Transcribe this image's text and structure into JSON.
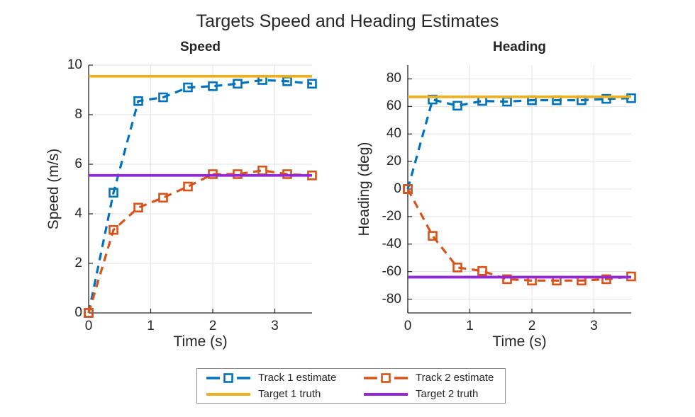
{
  "figure": {
    "title": "Targets Speed and Heading Estimates"
  },
  "style": {
    "background": "#FFFFFF",
    "axis_color": "#262626",
    "grid_color": "#E3E3E3",
    "text_color": "#262626",
    "legend_border_color": "#8C8C8C",
    "track1_color": "#0072BD",
    "track2_color": "#D95319",
    "target1_color": "#EDB120",
    "target2_color": "#9228D8"
  },
  "chart_data": [
    {
      "type": "line",
      "title": "Speed",
      "xlabel": "Time (s)",
      "ylabel": "Speed (m/s)",
      "xlim": [
        0,
        3.6
      ],
      "ylim": [
        0,
        10
      ],
      "xticks": [
        0,
        1,
        2,
        3
      ],
      "yticks": [
        0,
        2,
        4,
        6,
        8,
        10
      ],
      "grid": true,
      "legend_position": "south-outside",
      "x": [
        0,
        0.4,
        0.8,
        1.2,
        1.6,
        2.0,
        2.4,
        2.8,
        3.2,
        3.6
      ],
      "series": [
        {
          "name": "Track 1 estimate",
          "color": "#0072BD",
          "line_style": "dashed",
          "marker": "square",
          "values": [
            0,
            4.85,
            8.55,
            8.7,
            9.1,
            9.15,
            9.25,
            9.4,
            9.35,
            9.25
          ]
        },
        {
          "name": "Track 2 estimate",
          "color": "#D95319",
          "line_style": "dashed",
          "marker": "square",
          "values": [
            0,
            3.35,
            4.25,
            4.65,
            5.1,
            5.6,
            5.6,
            5.75,
            5.6,
            5.55
          ]
        }
      ],
      "ref_lines": [
        {
          "name": "Target 1 truth",
          "color": "#EDB120",
          "line_style": "solid",
          "y": 9.55
        },
        {
          "name": "Target 2 truth",
          "color": "#9228D8",
          "line_style": "solid",
          "y": 5.55
        }
      ]
    },
    {
      "type": "line",
      "title": "Heading",
      "xlabel": "Time (s)",
      "ylabel": "Heading (deg)",
      "xlim": [
        0,
        3.6
      ],
      "ylim": [
        -90,
        90
      ],
      "xticks": [
        0,
        1,
        2,
        3
      ],
      "yticks": [
        -80,
        -60,
        -40,
        -20,
        0,
        20,
        40,
        60,
        80
      ],
      "grid": true,
      "legend_position": "south-outside",
      "x": [
        0,
        0.4,
        0.8,
        1.2,
        1.6,
        2.0,
        2.4,
        2.8,
        3.2,
        3.6
      ],
      "series": [
        {
          "name": "Track 1 estimate",
          "color": "#0072BD",
          "line_style": "dashed",
          "marker": "square",
          "values": [
            0,
            65,
            60.5,
            64,
            63.5,
            64.5,
            64.5,
            64.5,
            65.5,
            66
          ]
        },
        {
          "name": "Track 2 estimate",
          "color": "#D95319",
          "line_style": "dashed",
          "marker": "square",
          "values": [
            0,
            -34,
            -57,
            -59.5,
            -65.5,
            -66.5,
            -66.5,
            -66.5,
            -65.5,
            -63.5
          ]
        }
      ],
      "ref_lines": [
        {
          "name": "Target 1 truth",
          "color": "#EDB120",
          "line_style": "solid",
          "y": 67
        },
        {
          "name": "Target 2 truth",
          "color": "#9228D8",
          "line_style": "solid",
          "y": -64
        }
      ]
    }
  ],
  "legend": {
    "entries": [
      {
        "label": "Track 1 estimate",
        "color": "#0072BD",
        "line_style": "dashed",
        "marker": "square"
      },
      {
        "label": "Track 2 estimate",
        "color": "#D95319",
        "line_style": "dashed",
        "marker": "square"
      },
      {
        "label": "Target 1 truth",
        "color": "#EDB120",
        "line_style": "solid",
        "marker": "none"
      },
      {
        "label": "Target 2 truth",
        "color": "#9228D8",
        "line_style": "solid",
        "marker": "none"
      }
    ]
  }
}
